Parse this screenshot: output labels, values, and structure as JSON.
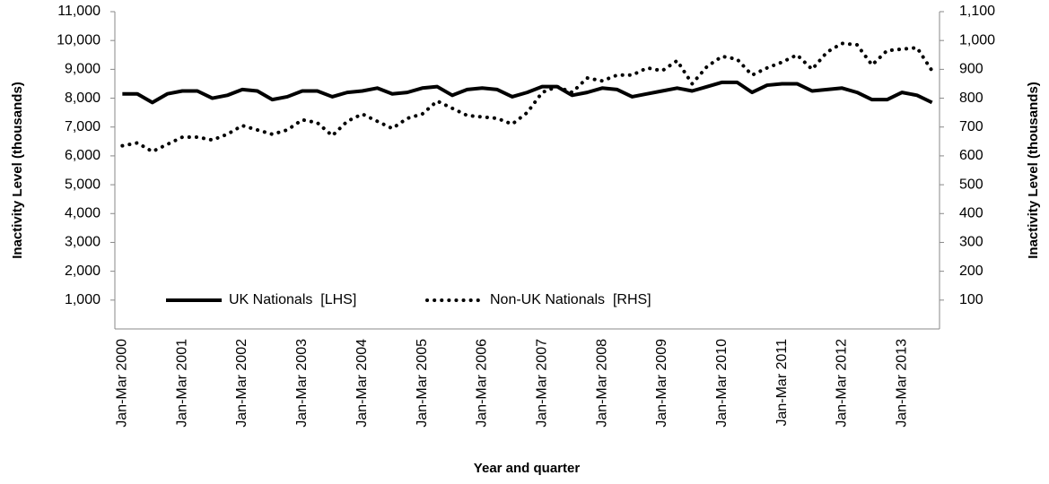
{
  "chart_data": {
    "type": "line",
    "x_label": "Year and quarter",
    "y_label": "Inactivity Level (thousands)",
    "y2_label": "Inactivity Level (thousands)",
    "categories": [
      "Jan-Mar 2000",
      null,
      null,
      null,
      "Jan-Mar 2001",
      null,
      null,
      null,
      "Jan-Mar 2002",
      null,
      null,
      null,
      "Jan-Mar 2003",
      null,
      null,
      null,
      "Jan-Mar 2004",
      null,
      null,
      null,
      "Jan-Mar 2005",
      null,
      null,
      null,
      "Jan-Mar 2006",
      null,
      null,
      null,
      "Jan-Mar 2007",
      null,
      null,
      null,
      "Jan-Mar 2008",
      null,
      null,
      null,
      "Jan-Mar 2009",
      null,
      null,
      null,
      "Jan-Mar 2010",
      null,
      null,
      null,
      "Jan-Mar 2011",
      null,
      null,
      null,
      "Jan-Mar 2012",
      null,
      null,
      null,
      "Jan-Mar 2013",
      null,
      null
    ],
    "series": [
      {
        "name": "UK Nationals  [LHS]",
        "color": "#000000",
        "dash": "solid",
        "values": [
          8150,
          8150,
          7850,
          8150,
          8250,
          8250,
          8000,
          8100,
          8300,
          8250,
          7950,
          8050,
          8250,
          8250,
          8050,
          8200,
          8250,
          8350,
          8150,
          8200,
          8350,
          8400,
          8100,
          8300,
          8350,
          8300,
          8050,
          8200,
          8400,
          8400,
          8100,
          8200,
          8350,
          8300,
          8050,
          8150,
          8250,
          8350,
          8250,
          8400,
          8550,
          8550,
          8200,
          8450,
          8500,
          8500,
          8250,
          8300,
          8350,
          8200,
          7950,
          7950,
          8200,
          8100,
          7850
        ]
      },
      {
        "name": "Non-UK Nationals  [RHS]",
        "color": "#000000",
        "dash": "dotted",
        "axis": "y2",
        "values": [
          635,
          645,
          615,
          640,
          665,
          665,
          655,
          675,
          705,
          690,
          675,
          690,
          725,
          715,
          670,
          720,
          745,
          720,
          695,
          730,
          745,
          790,
          765,
          740,
          735,
          730,
          710,
          750,
          820,
          840,
          820,
          870,
          860,
          880,
          880,
          905,
          895,
          930,
          850,
          910,
          945,
          935,
          880,
          905,
          925,
          950,
          900,
          960,
          990,
          985,
          915,
          965,
          970,
          975,
          895
        ]
      }
    ],
    "ylim": [
      0,
      11000
    ],
    "yticks": [
      {
        "value": 1000,
        "label": "1,000"
      },
      {
        "value": 2000,
        "label": "2,000"
      },
      {
        "value": 3000,
        "label": "3,000"
      },
      {
        "value": 4000,
        "label": "4,000"
      },
      {
        "value": 5000,
        "label": "5,000"
      },
      {
        "value": 6000,
        "label": "6,000"
      },
      {
        "value": 7000,
        "label": "7,000"
      },
      {
        "value": 8000,
        "label": "8,000"
      },
      {
        "value": 9000,
        "label": "9,000"
      },
      {
        "value": 10000,
        "label": "10,000"
      },
      {
        "value": 11000,
        "label": "11,000"
      }
    ],
    "y2lim": [
      0,
      1100
    ],
    "y2ticks": [
      100,
      200,
      300,
      400,
      500,
      600,
      700,
      800,
      900,
      {
        "value": 1000,
        "label": "1,000"
      },
      {
        "value": 1100,
        "label": "1,100"
      }
    ],
    "grid": false
  }
}
